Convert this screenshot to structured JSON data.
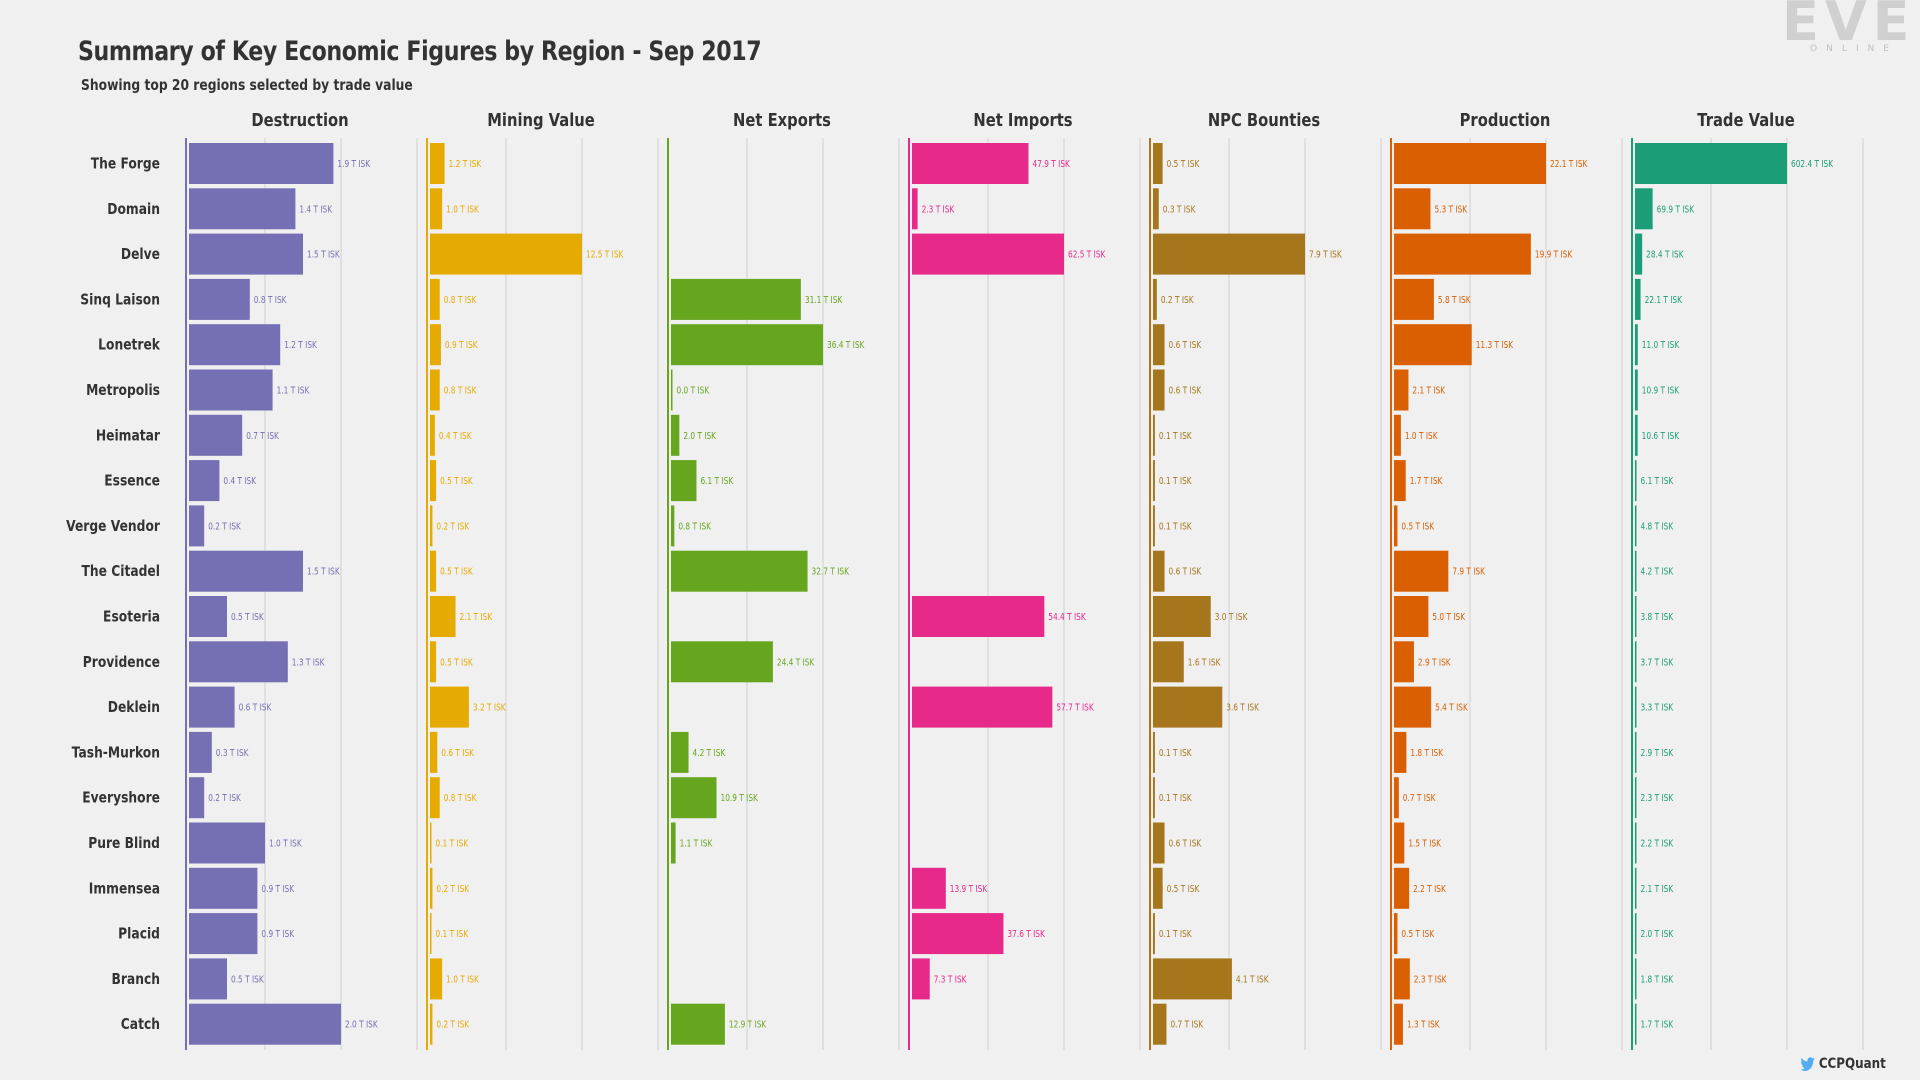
{
  "title": "Summary of Key Economic Figures by Region - Sep 2017",
  "subtitle": "Showing top 20 regions selected by trade value",
  "logo": {
    "word": "EVE",
    "sub": "ONLINE"
  },
  "footer": {
    "handle": "CCPQuant",
    "icon": "twitter-icon"
  },
  "chart_data": {
    "type": "bar",
    "orientation": "horizontal",
    "unit_suffix": " T ISK",
    "categories": [
      "The Forge",
      "Domain",
      "Delve",
      "Sinq Laison",
      "Lonetrek",
      "Metropolis",
      "Heimatar",
      "Essence",
      "Verge Vendor",
      "The Citadel",
      "Esoteria",
      "Providence",
      "Deklein",
      "Tash-Murkon",
      "Everyshore",
      "Pure Blind",
      "Immensea",
      "Placid",
      "Branch",
      "Catch"
    ],
    "grid": true,
    "series": [
      {
        "name": "Destruction",
        "color": "#7570b3",
        "max": 2.0,
        "values": [
          1.9,
          1.4,
          1.5,
          0.8,
          1.2,
          1.1,
          0.7,
          0.4,
          0.2,
          1.5,
          0.5,
          1.3,
          0.6,
          0.3,
          0.2,
          1.0,
          0.9,
          0.9,
          0.5,
          2.0
        ],
        "labels": [
          "1.9",
          "1.4",
          "1.5",
          "0.8",
          "1.2",
          "1.1",
          "0.7",
          "0.4",
          "0.2",
          "1.5",
          "0.5",
          "1.3",
          "0.6",
          "0.3",
          "0.2",
          "1.0",
          "0.9",
          "0.9",
          "0.5",
          "2.0"
        ]
      },
      {
        "name": "Mining Value",
        "color": "#e6ab02",
        "max": 12.5,
        "values": [
          1.2,
          1.0,
          12.5,
          0.8,
          0.9,
          0.8,
          0.4,
          0.5,
          0.2,
          0.5,
          2.1,
          0.5,
          3.2,
          0.6,
          0.8,
          0.1,
          0.2,
          0.1,
          1.0,
          0.2
        ],
        "labels": [
          "1.2",
          "1.0",
          "12.5",
          "0.8",
          "0.9",
          "0.8",
          "0.4",
          "0.5",
          "0.2",
          "0.5",
          "2.1",
          "0.5",
          "3.2",
          "0.6",
          "0.8",
          "0.1",
          "0.2",
          "0.1",
          "1.0",
          "0.2"
        ]
      },
      {
        "name": "Net Exports",
        "color": "#66a61e",
        "max": 36.4,
        "values": [
          0,
          0,
          0,
          31.1,
          36.4,
          0.0,
          2.0,
          6.1,
          0.8,
          32.7,
          0,
          24.4,
          0,
          4.2,
          10.9,
          1.1,
          0,
          0,
          0,
          12.9
        ],
        "labels": [
          "",
          "",
          "",
          "31.1",
          "36.4",
          "0.0",
          "2.0",
          "6.1",
          "0.8",
          "32.7",
          "",
          "24.4",
          "",
          "4.2",
          "10.9",
          "1.1",
          "",
          "",
          "",
          "12.9"
        ]
      },
      {
        "name": "Net Imports",
        "color": "#e7298a",
        "max": 62.5,
        "values": [
          47.9,
          2.3,
          62.5,
          0,
          0,
          0,
          0,
          0,
          0,
          0,
          54.4,
          0,
          57.7,
          0,
          0,
          0,
          13.9,
          37.6,
          7.3,
          0
        ],
        "labels": [
          "47.9",
          "2.3",
          "62.5",
          "",
          "",
          "",
          "",
          "",
          "",
          "",
          "54.4",
          "",
          "57.7",
          "",
          "",
          "",
          "13.9",
          "37.6",
          "7.3",
          ""
        ]
      },
      {
        "name": "NPC Bounties",
        "color": "#a6761d",
        "max": 7.9,
        "values": [
          0.5,
          0.3,
          7.9,
          0.2,
          0.6,
          0.6,
          0.1,
          0.1,
          0.1,
          0.6,
          3.0,
          1.6,
          3.6,
          0.1,
          0.1,
          0.6,
          0.5,
          0.1,
          4.1,
          0.7
        ],
        "labels": [
          "0.5",
          "0.3",
          "7.9",
          "0.2",
          "0.6",
          "0.6",
          "0.1",
          "0.1",
          "0.1",
          "0.6",
          "3.0",
          "1.6",
          "3.6",
          "0.1",
          "0.1",
          "0.6",
          "0.5",
          "0.1",
          "4.1",
          "0.7"
        ]
      },
      {
        "name": "Production",
        "color": "#d95f02",
        "max": 22.1,
        "values": [
          22.1,
          5.3,
          19.9,
          5.8,
          11.3,
          2.1,
          1.0,
          1.7,
          0.5,
          7.9,
          5.0,
          2.9,
          5.4,
          1.8,
          0.7,
          1.5,
          2.2,
          0.5,
          2.3,
          1.3
        ],
        "labels": [
          "22.1",
          "5.3",
          "19.9",
          "5.8",
          "11.3",
          "2.1",
          "1.0",
          "1.7",
          "0.5",
          "7.9",
          "5.0",
          "2.9",
          "5.4",
          "1.8",
          "0.7",
          "1.5",
          "2.2",
          "0.5",
          "2.3",
          "1.3"
        ]
      },
      {
        "name": "Trade Value",
        "color": "#1b9e77",
        "max": 602.4,
        "values": [
          602.4,
          69.9,
          28.4,
          22.1,
          11.0,
          10.9,
          10.6,
          6.1,
          4.8,
          4.2,
          3.8,
          3.7,
          3.3,
          2.9,
          2.3,
          2.2,
          2.1,
          2.0,
          1.8,
          1.7
        ],
        "labels": [
          "602.4",
          "69.9",
          "28.4",
          "22.1",
          "11.0",
          "10.9",
          "10.6",
          "6.1",
          "4.8",
          "4.2",
          "3.8",
          "3.7",
          "3.3",
          "2.9",
          "2.3",
          "2.2",
          "2.1",
          "2.0",
          "1.8",
          "1.7"
        ]
      }
    ]
  }
}
